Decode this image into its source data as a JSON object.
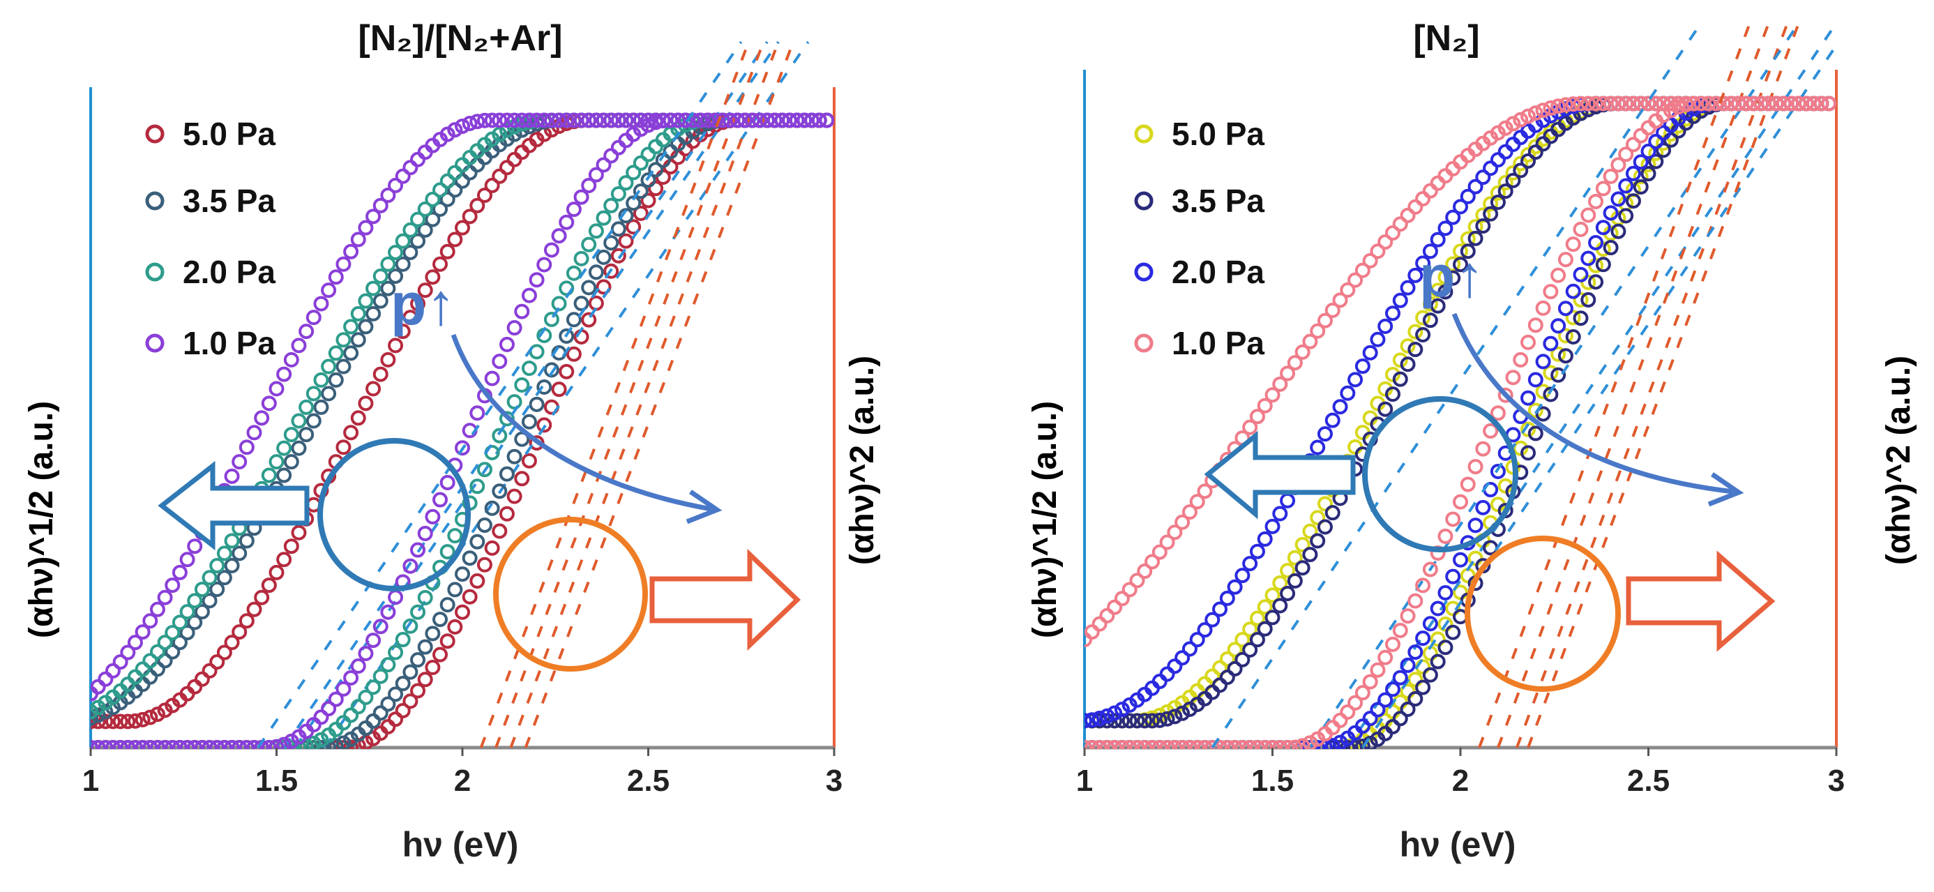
{
  "colors": {
    "left_axis": "#1f8fd0",
    "right_axis": "#e8603c",
    "x_axis": "#8a8a8a",
    "tangent_sqrt": "#2f8fd8",
    "tangent_sq": "#e05a2c",
    "circle_sqrt": "#2f79b5",
    "circle_sq": "#ef7d25",
    "arrow_sqrt": "#2f79b5",
    "arrow_sq": "#e8603c",
    "p_arrow": "#4a78c8"
  },
  "chart_data": [
    {
      "type": "scatter",
      "title": "[N₂]/[N₂+Ar]",
      "xlabel": "hν (eV)",
      "ylabel_left": "(αhν)^1/2 (a.u.)",
      "ylabel_right": "(αhν)^2 (a.u.)",
      "xlim": [
        1,
        3
      ],
      "ylim": [
        0,
        1
      ],
      "xticks": [
        "1",
        "1.5",
        "2",
        "2.5",
        "3"
      ],
      "annotation": "p↑",
      "series": [
        {
          "name": "5.0 Pa",
          "color": "#b52a3e",
          "sqrt_onset": 1.38,
          "sqrt_width": 0.56,
          "sq_onset": 2.0,
          "sq_width": 0.35,
          "tangent_sqrt_x0": 1.63,
          "tangent_sq_x0": 2.17
        },
        {
          "name": "3.5 Pa",
          "color": "#3a5f7a",
          "sqrt_onset": 1.24,
          "sqrt_width": 0.6,
          "sq_onset": 1.95,
          "sq_width": 0.36,
          "tangent_sqrt_x0": 1.55,
          "tangent_sq_x0": 2.13
        },
        {
          "name": "2.0 Pa",
          "color": "#2e9c8c",
          "sqrt_onset": 1.2,
          "sqrt_width": 0.6,
          "sq_onset": 1.88,
          "sq_width": 0.37,
          "tangent_sqrt_x0": 1.52,
          "tangent_sq_x0": 2.09
        },
        {
          "name": "1.0 Pa",
          "color": "#8a3fd8",
          "sqrt_onset": 1.12,
          "sqrt_width": 0.56,
          "sq_onset": 1.8,
          "sq_width": 0.36,
          "tangent_sqrt_x0": 1.45,
          "tangent_sq_x0": 2.05
        }
      ]
    },
    {
      "type": "scatter",
      "title": "[N₂]",
      "xlabel": "hν (eV)",
      "ylabel_left": "(αhν)^1/2 (a.u.)",
      "ylabel_right": "(αhν)^2 (a.u.)",
      "xlim": [
        1,
        3
      ],
      "ylim": [
        0,
        1
      ],
      "xticks": [
        "1",
        "1.5",
        "2",
        "2.5",
        "3"
      ],
      "annotation": "p↑",
      "series": [
        {
          "name": "5.0 Pa",
          "color": "#d8d81c",
          "sqrt_onset": 1.42,
          "sqrt_width": 0.58,
          "sq_onset": 1.98,
          "sq_width": 0.34,
          "tangent_sqrt_x0": 1.7,
          "tangent_sq_x0": 2.15
        },
        {
          "name": "3.5 Pa",
          "color": "#2b2b7a",
          "sqrt_onset": 1.46,
          "sqrt_width": 0.56,
          "sq_onset": 2.01,
          "sq_width": 0.33,
          "tangent_sqrt_x0": 1.74,
          "tangent_sq_x0": 2.18
        },
        {
          "name": "2.0 Pa",
          "color": "#2a2ae0",
          "sqrt_onset": 1.3,
          "sqrt_width": 0.62,
          "sq_onset": 1.94,
          "sq_width": 0.35,
          "tangent_sqrt_x0": 1.6,
          "tangent_sq_x0": 2.1
        },
        {
          "name": "1.0 Pa",
          "color": "#f07c8a",
          "sqrt_onset": 1.0,
          "sqrt_width": 0.78,
          "sq_onset": 1.87,
          "sq_width": 0.36,
          "tangent_sqrt_x0": 1.34,
          "tangent_sq_x0": 2.05
        }
      ]
    }
  ]
}
